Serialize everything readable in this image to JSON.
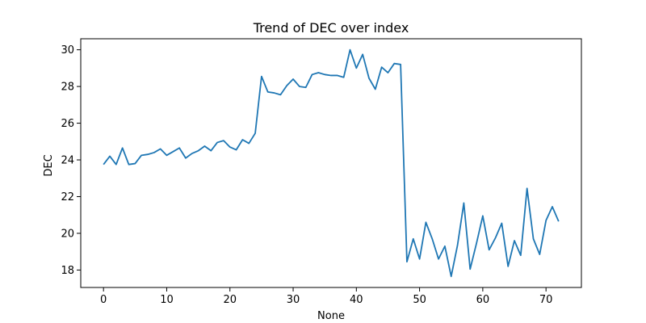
{
  "chart_data": {
    "type": "line",
    "title": "Trend of DEC over index",
    "xlabel": "None",
    "ylabel": "DEC",
    "xlim": [
      -3.6,
      75.6
    ],
    "ylim": [
      17.05,
      30.6
    ],
    "xticks": [
      0,
      10,
      20,
      30,
      40,
      50,
      60,
      70
    ],
    "yticks": [
      18,
      20,
      22,
      24,
      26,
      28,
      30
    ],
    "grid": false,
    "legend": "none",
    "series": [
      {
        "color": "#1f77b4",
        "x": [
          0,
          1,
          2,
          3,
          4,
          5,
          6,
          7,
          8,
          9,
          10,
          11,
          12,
          13,
          14,
          15,
          16,
          17,
          18,
          19,
          20,
          21,
          22,
          23,
          24,
          25,
          26,
          27,
          28,
          29,
          30,
          31,
          32,
          33,
          34,
          35,
          36,
          37,
          38,
          39,
          40,
          41,
          42,
          43,
          44,
          45,
          46,
          47,
          48,
          49,
          50,
          51,
          52,
          53,
          54,
          55,
          56,
          57,
          58,
          59,
          60,
          61,
          62,
          63,
          64,
          65,
          66,
          67,
          68,
          69,
          70,
          71,
          72
        ],
        "values": [
          23.75,
          24.2,
          23.75,
          24.65,
          23.75,
          23.8,
          24.25,
          24.3,
          24.4,
          24.6,
          24.25,
          24.45,
          24.65,
          24.1,
          24.35,
          24.5,
          24.75,
          24.5,
          24.95,
          25.05,
          24.7,
          24.55,
          25.1,
          24.9,
          25.45,
          28.55,
          27.7,
          27.65,
          27.55,
          28.05,
          28.4,
          28.0,
          27.95,
          28.65,
          28.75,
          28.65,
          28.6,
          28.6,
          28.5,
          30.0,
          29.0,
          29.75,
          28.45,
          27.85,
          29.05,
          28.75,
          29.25,
          29.2,
          18.45,
          19.7,
          18.6,
          20.6,
          19.7,
          18.6,
          19.3,
          17.65,
          19.35,
          21.65,
          18.05,
          19.45,
          20.95,
          19.1,
          19.75,
          20.55,
          18.2,
          19.6,
          18.8,
          22.45,
          19.7,
          18.85,
          20.7,
          21.45,
          20.65
        ]
      }
    ]
  }
}
